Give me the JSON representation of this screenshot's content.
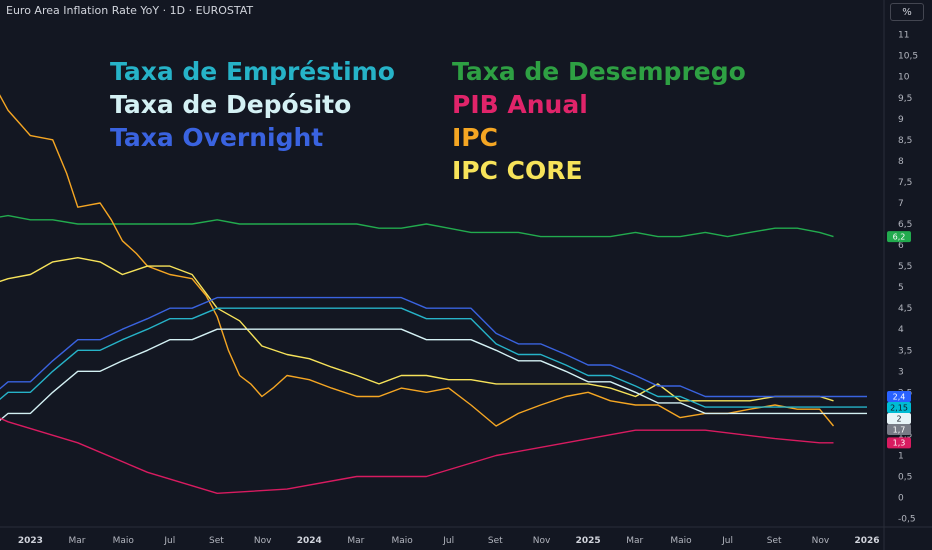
{
  "header": {
    "title": "Euro Area Inflation Rate YoY · 1D · EUROSTAT",
    "unit_button": "%"
  },
  "chart_data": {
    "type": "line",
    "xlim": [
      2022.83,
      2026.0
    ],
    "ylim": [
      -0.7,
      11.3
    ],
    "y_ticks": [
      {
        "v": 11,
        "label": "11"
      },
      {
        "v": 10.5,
        "label": "10,5"
      },
      {
        "v": 10,
        "label": "10"
      },
      {
        "v": 9.5,
        "label": "9,5"
      },
      {
        "v": 9,
        "label": "9"
      },
      {
        "v": 8.5,
        "label": "8,5"
      },
      {
        "v": 8,
        "label": "8"
      },
      {
        "v": 7.5,
        "label": "7,5"
      },
      {
        "v": 7,
        "label": "7"
      },
      {
        "v": 6.5,
        "label": "6,5"
      },
      {
        "v": 6,
        "label": "6"
      },
      {
        "v": 5.5,
        "label": "5,5"
      },
      {
        "v": 5,
        "label": "5"
      },
      {
        "v": 4.5,
        "label": "4,5"
      },
      {
        "v": 4,
        "label": "4"
      },
      {
        "v": 3.5,
        "label": "3,5"
      },
      {
        "v": 3,
        "label": "3"
      },
      {
        "v": 2.5,
        "label": "2,5"
      },
      {
        "v": 1.5,
        "label": "1,5"
      },
      {
        "v": 1,
        "label": "1"
      },
      {
        "v": 0.5,
        "label": "0,5"
      },
      {
        "v": 0,
        "label": "0"
      },
      {
        "v": -0.5,
        "label": "-0,5"
      }
    ],
    "x_ticks": [
      {
        "t": 2022.833,
        "label": "Nov",
        "year": false
      },
      {
        "t": 2023.0,
        "label": "2023",
        "year": true
      },
      {
        "t": 2023.167,
        "label": "Mar",
        "year": false
      },
      {
        "t": 2023.333,
        "label": "Maio",
        "year": false
      },
      {
        "t": 2023.5,
        "label": "Jul",
        "year": false
      },
      {
        "t": 2023.667,
        "label": "Set",
        "year": false
      },
      {
        "t": 2023.833,
        "label": "Nov",
        "year": false
      },
      {
        "t": 2024.0,
        "label": "2024",
        "year": true
      },
      {
        "t": 2024.167,
        "label": "Mar",
        "year": false
      },
      {
        "t": 2024.333,
        "label": "Maio",
        "year": false
      },
      {
        "t": 2024.5,
        "label": "Jul",
        "year": false
      },
      {
        "t": 2024.667,
        "label": "Set",
        "year": false
      },
      {
        "t": 2024.833,
        "label": "Nov",
        "year": false
      },
      {
        "t": 2025.0,
        "label": "2025",
        "year": true
      },
      {
        "t": 2025.167,
        "label": "Mar",
        "year": false
      },
      {
        "t": 2025.333,
        "label": "Maio",
        "year": false
      },
      {
        "t": 2025.5,
        "label": "Jul",
        "year": false
      },
      {
        "t": 2025.667,
        "label": "Set",
        "year": false
      },
      {
        "t": 2025.833,
        "label": "Nov",
        "year": false
      },
      {
        "t": 2026.0,
        "label": "2026",
        "year": true
      }
    ],
    "legend": {
      "left": [
        {
          "text": "Taxa de Empréstimo",
          "color": "#26b3c8"
        },
        {
          "text": "Taxa de Depósito",
          "color": "#d4f1f4"
        },
        {
          "text": "Taxa Overnight",
          "color": "#3a63e0"
        }
      ],
      "right": [
        {
          "text": "Taxa de Desemprego",
          "color": "#2ea043"
        },
        {
          "text": "PIB Anual",
          "color": "#e0246a"
        },
        {
          "text": "IPC",
          "color": "#f5a623"
        },
        {
          "text": "IPC CORE",
          "color": "#f7e35a"
        }
      ]
    },
    "series": [
      {
        "key": "unemployment",
        "color": "#22ab4e",
        "x": [
          2022.75,
          2022.83,
          2022.92,
          2023.0,
          2023.08,
          2023.17,
          2023.25,
          2023.33,
          2023.42,
          2023.5,
          2023.58,
          2023.67,
          2023.75,
          2023.83,
          2023.92,
          2024.0,
          2024.08,
          2024.17,
          2024.25,
          2024.33,
          2024.42,
          2024.5,
          2024.58,
          2024.67,
          2024.75,
          2024.83,
          2024.92,
          2025.0,
          2025.08,
          2025.17,
          2025.25,
          2025.33,
          2025.42,
          2025.5,
          2025.58,
          2025.67,
          2025.75,
          2025.83,
          2025.88
        ],
        "y": [
          6.6,
          6.6,
          6.7,
          6.6,
          6.6,
          6.5,
          6.5,
          6.5,
          6.5,
          6.5,
          6.5,
          6.6,
          6.5,
          6.5,
          6.5,
          6.5,
          6.5,
          6.5,
          6.4,
          6.4,
          6.5,
          6.4,
          6.3,
          6.3,
          6.3,
          6.2,
          6.2,
          6.2,
          6.2,
          6.3,
          6.2,
          6.2,
          6.3,
          6.2,
          6.3,
          6.4,
          6.4,
          6.3,
          6.2
        ]
      },
      {
        "key": "cpi",
        "color": "#f5a623",
        "x": [
          2022.75,
          2022.79,
          2022.83,
          2022.87,
          2022.92,
          2022.96,
          2023.0,
          2023.04,
          2023.08,
          2023.13,
          2023.17,
          2023.21,
          2023.25,
          2023.29,
          2023.33,
          2023.38,
          2023.42,
          2023.46,
          2023.5,
          2023.54,
          2023.58,
          2023.63,
          2023.67,
          2023.71,
          2023.75,
          2023.79,
          2023.83,
          2023.87,
          2023.92,
          2023.96,
          2024.0,
          2024.08,
          2024.17,
          2024.25,
          2024.33,
          2024.42,
          2024.5,
          2024.58,
          2024.67,
          2024.75,
          2024.83,
          2024.92,
          2025.0,
          2025.08,
          2025.17,
          2025.25,
          2025.33,
          2025.42,
          2025.5,
          2025.58,
          2025.67,
          2025.75,
          2025.83,
          2025.88
        ],
        "y": [
          10.6,
          10.6,
          10.3,
          9.8,
          9.2,
          8.9,
          8.6,
          8.55,
          8.5,
          7.7,
          6.9,
          6.95,
          7.0,
          6.6,
          6.1,
          5.8,
          5.5,
          5.4,
          5.3,
          5.25,
          5.2,
          4.8,
          4.3,
          3.5,
          2.9,
          2.7,
          2.4,
          2.6,
          2.9,
          2.85,
          2.8,
          2.6,
          2.4,
          2.4,
          2.6,
          2.5,
          2.6,
          2.2,
          1.7,
          2.0,
          2.2,
          2.4,
          2.5,
          2.3,
          2.2,
          2.2,
          1.9,
          2.0,
          2.0,
          2.1,
          2.2,
          2.1,
          2.1,
          1.7
        ]
      },
      {
        "key": "core_cpi",
        "color": "#f7e35a",
        "x": [
          2022.75,
          2022.83,
          2022.92,
          2023.0,
          2023.08,
          2023.17,
          2023.25,
          2023.33,
          2023.42,
          2023.5,
          2023.58,
          2023.67,
          2023.75,
          2023.83,
          2023.92,
          2024.0,
          2024.08,
          2024.17,
          2024.25,
          2024.33,
          2024.42,
          2024.5,
          2024.58,
          2024.67,
          2024.75,
          2024.83,
          2024.92,
          2025.0,
          2025.08,
          2025.17,
          2025.25,
          2025.33,
          2025.42,
          2025.5,
          2025.58,
          2025.67,
          2025.75,
          2025.83,
          2025.88
        ],
        "y": [
          5.0,
          5.0,
          5.2,
          5.3,
          5.6,
          5.7,
          5.6,
          5.3,
          5.5,
          5.5,
          5.3,
          4.5,
          4.2,
          3.6,
          3.4,
          3.3,
          3.1,
          2.9,
          2.7,
          2.9,
          2.9,
          2.8,
          2.8,
          2.7,
          2.7,
          2.7,
          2.7,
          2.7,
          2.6,
          2.4,
          2.7,
          2.3,
          2.3,
          2.3,
          2.3,
          2.4,
          2.4,
          2.4,
          2.3
        ]
      },
      {
        "key": "lending_rate",
        "color": "#26b3c8",
        "x": [
          2022.75,
          2022.83,
          2022.92,
          2023.0,
          2023.08,
          2023.17,
          2023.25,
          2023.33,
          2023.42,
          2023.5,
          2023.58,
          2023.67,
          2023.75,
          2023.83,
          2023.92,
          2024.0,
          2024.08,
          2024.17,
          2024.25,
          2024.33,
          2024.42,
          2024.5,
          2024.58,
          2024.67,
          2024.75,
          2024.83,
          2024.92,
          2025.0,
          2025.08,
          2025.17,
          2025.25,
          2025.33,
          2025.42,
          2025.5,
          2025.58,
          2025.67,
          2025.75,
          2025.83,
          2025.92,
          2026.0
        ],
        "y": [
          1.25,
          2.0,
          2.5,
          2.5,
          3.0,
          3.5,
          3.5,
          3.75,
          4.0,
          4.25,
          4.25,
          4.5,
          4.5,
          4.5,
          4.5,
          4.5,
          4.5,
          4.5,
          4.5,
          4.5,
          4.25,
          4.25,
          4.25,
          3.65,
          3.4,
          3.4,
          3.15,
          2.9,
          2.9,
          2.65,
          2.4,
          2.4,
          2.15,
          2.15,
          2.15,
          2.15,
          2.15,
          2.15,
          2.15,
          2.15
        ]
      },
      {
        "key": "deposit_rate",
        "color": "#d4f1f4",
        "x": [
          2022.75,
          2022.83,
          2022.92,
          2023.0,
          2023.08,
          2023.17,
          2023.25,
          2023.33,
          2023.42,
          2023.5,
          2023.58,
          2023.67,
          2023.75,
          2023.83,
          2023.92,
          2024.0,
          2024.08,
          2024.17,
          2024.25,
          2024.33,
          2024.42,
          2024.5,
          2024.58,
          2024.67,
          2024.75,
          2024.83,
          2024.92,
          2025.0,
          2025.08,
          2025.17,
          2025.25,
          2025.33,
          2025.42,
          2025.5,
          2025.58,
          2025.67,
          2025.75,
          2025.83,
          2025.92,
          2026.0
        ],
        "y": [
          1.5,
          1.5,
          2.0,
          2.0,
          2.5,
          3.0,
          3.0,
          3.25,
          3.5,
          3.75,
          3.75,
          4.0,
          4.0,
          4.0,
          4.0,
          4.0,
          4.0,
          4.0,
          4.0,
          4.0,
          3.75,
          3.75,
          3.75,
          3.5,
          3.25,
          3.25,
          3.0,
          2.75,
          2.75,
          2.5,
          2.25,
          2.25,
          2.0,
          2.0,
          2.0,
          2.0,
          2.0,
          2.0,
          2.0,
          2.0
        ]
      },
      {
        "key": "overnight_rate",
        "color": "#3a63e0",
        "x": [
          2022.75,
          2022.83,
          2022.92,
          2023.0,
          2023.08,
          2023.17,
          2023.25,
          2023.33,
          2023.42,
          2023.5,
          2023.58,
          2023.67,
          2023.75,
          2023.83,
          2023.92,
          2024.0,
          2024.08,
          2024.17,
          2024.25,
          2024.33,
          2024.42,
          2024.5,
          2024.58,
          2024.67,
          2024.75,
          2024.83,
          2024.92,
          2025.0,
          2025.08,
          2025.17,
          2025.25,
          2025.33,
          2025.42,
          2025.5,
          2025.58,
          2025.67,
          2025.75,
          2025.83,
          2025.92,
          2026.0
        ],
        "y": [
          1.5,
          2.25,
          2.75,
          2.75,
          3.25,
          3.75,
          3.75,
          4.0,
          4.25,
          4.5,
          4.5,
          4.75,
          4.75,
          4.75,
          4.75,
          4.75,
          4.75,
          4.75,
          4.75,
          4.75,
          4.5,
          4.5,
          4.5,
          3.9,
          3.65,
          3.65,
          3.4,
          3.15,
          3.15,
          2.9,
          2.65,
          2.65,
          2.4,
          2.4,
          2.4,
          2.4,
          2.4,
          2.4,
          2.4,
          2.4
        ]
      },
      {
        "key": "gdp_annual",
        "color": "#d81b60",
        "x": [
          2022.75,
          2022.92,
          2023.17,
          2023.42,
          2023.67,
          2023.92,
          2024.17,
          2024.42,
          2024.67,
          2024.92,
          2025.17,
          2025.42,
          2025.67,
          2025.83,
          2025.88
        ],
        "y": [
          2.3,
          1.8,
          1.3,
          0.6,
          0.1,
          0.2,
          0.5,
          0.5,
          1.0,
          1.3,
          1.6,
          1.6,
          1.4,
          1.3,
          1.3
        ]
      }
    ],
    "last_values": [
      {
        "v": 6.2,
        "label": "6,2",
        "bg": "#22ab4e",
        "fg": "#ffffff"
      },
      {
        "v": 2.4,
        "label": "2,4",
        "bg": "#2962ff",
        "fg": "#ffffff"
      },
      {
        "v": 2.15,
        "label": "2,15",
        "bg": "#00bcd4",
        "fg": "#131722"
      },
      {
        "v": 2.0,
        "label": "2",
        "bg": "#e8f4f8",
        "fg": "#131722"
      },
      {
        "v": 1.7,
        "label": "1,7",
        "bg": "#787b86",
        "fg": "#ffffff"
      },
      {
        "v": 1.3,
        "label": "1,3",
        "bg": "#d81b60",
        "fg": "#ffffff"
      }
    ]
  }
}
